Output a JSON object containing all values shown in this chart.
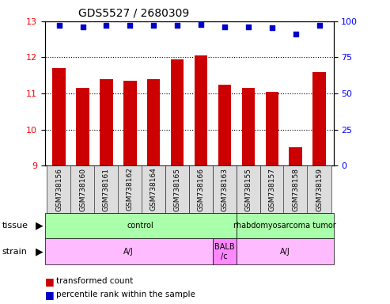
{
  "title": "GDS5527 / 2680309",
  "samples": [
    "GSM738156",
    "GSM738160",
    "GSM738161",
    "GSM738162",
    "GSM738164",
    "GSM738165",
    "GSM738166",
    "GSM738163",
    "GSM738155",
    "GSM738157",
    "GSM738158",
    "GSM738159"
  ],
  "bar_values": [
    11.7,
    11.15,
    11.4,
    11.35,
    11.4,
    11.95,
    12.05,
    11.25,
    11.15,
    11.05,
    9.5,
    11.6
  ],
  "dot_values": [
    97,
    96,
    97,
    97,
    97,
    97,
    98,
    96,
    96,
    95.5,
    91,
    97
  ],
  "bar_color": "#CC0000",
  "dot_color": "#0000CC",
  "ymin": 9,
  "ymax": 13,
  "y2min": 0,
  "y2max": 100,
  "yticks": [
    9,
    10,
    11,
    12,
    13
  ],
  "y2ticks": [
    0,
    25,
    50,
    75,
    100
  ],
  "tissue_data": [
    {
      "text": "control",
      "start": 0,
      "end": 8,
      "color": "#AAFFAA"
    },
    {
      "text": "rhabdomyosarcoma tumor",
      "start": 8,
      "end": 12,
      "color": "#AAFFAA"
    }
  ],
  "strain_data": [
    {
      "text": "A/J",
      "start": 0,
      "end": 7,
      "color": "#FFBBFF"
    },
    {
      "text": "BALB\n/c",
      "start": 7,
      "end": 8,
      "color": "#FF88FF"
    },
    {
      "text": "A/J",
      "start": 8,
      "end": 12,
      "color": "#FFBBFF"
    }
  ],
  "legend_bar_label": "transformed count",
  "legend_dot_label": "percentile rank within the sample",
  "tissue_row_label": "tissue",
  "strain_row_label": "strain",
  "xtick_bg": "#DDDDDD",
  "plot_bg": "#FFFFFF"
}
